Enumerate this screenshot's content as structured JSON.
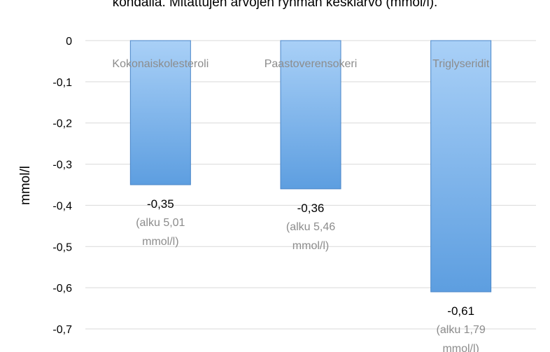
{
  "chart_data": {
    "type": "bar",
    "title": "kondalla. Mitattujen arvojen ryhmän keskiarvo (mmol/l).",
    "ylabel": "mmol/l",
    "xlabel": "",
    "ylim": [
      -0.7,
      0
    ],
    "yticks": [
      "0",
      "-0,1",
      "-0,2",
      "-0,3",
      "-0,4",
      "-0,5",
      "-0,6",
      "-0,7"
    ],
    "ytick_values": [
      0,
      -0.1,
      -0.2,
      -0.3,
      -0.4,
      -0.5,
      -0.6,
      -0.7
    ],
    "grid": true,
    "categories": [
      "Kokonaiskolesteroli",
      "Paastoverensokeri",
      "Triglyseridit"
    ],
    "values": [
      -0.35,
      -0.36,
      -0.61
    ],
    "value_labels": [
      "-0,35",
      "-0,36",
      "-0,61"
    ],
    "notes": [
      [
        "(alku 5,01",
        "mmol/l)"
      ],
      [
        "(alku 5,46",
        "mmol/l)"
      ],
      [
        "(alku 1,79",
        "mmol/l)"
      ]
    ],
    "colors": {
      "bar_light": "#a9d0f7",
      "bar_dark": "#5d9ee0",
      "bar_edge": "#4a86c8",
      "grid": "#d9d9d9"
    }
  }
}
